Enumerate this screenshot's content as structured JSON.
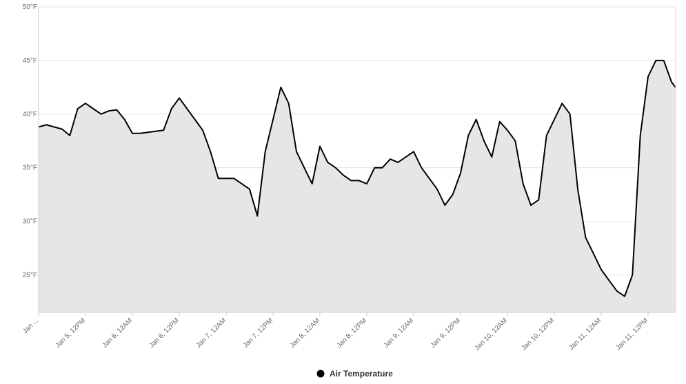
{
  "chart_data": {
    "type": "area",
    "x": [
      "Jan 5, 12AM",
      "Jan 5, 2AM",
      "Jan 5, 4AM",
      "Jan 5, 6AM",
      "Jan 5, 8AM",
      "Jan 5, 10AM",
      "Jan 5, 12PM",
      "Jan 5, 2PM",
      "Jan 5, 4PM",
      "Jan 5, 6PM",
      "Jan 5, 8PM",
      "Jan 5, 10PM",
      "Jan 6, 12AM",
      "Jan 6, 2AM",
      "Jan 6, 4AM",
      "Jan 6, 6AM",
      "Jan 6, 8AM",
      "Jan 6, 10AM",
      "Jan 6, 12PM",
      "Jan 6, 2PM",
      "Jan 6, 4PM",
      "Jan 6, 6PM",
      "Jan 6, 8PM",
      "Jan 6, 10PM",
      "Jan 7, 12AM",
      "Jan 7, 2AM",
      "Jan 7, 4AM",
      "Jan 7, 6AM",
      "Jan 7, 8AM",
      "Jan 7, 10AM",
      "Jan 7, 12PM",
      "Jan 7, 2PM",
      "Jan 7, 4PM",
      "Jan 7, 6PM",
      "Jan 7, 8PM",
      "Jan 7, 10PM",
      "Jan 8, 12AM",
      "Jan 8, 2AM",
      "Jan 8, 4AM",
      "Jan 8, 6AM",
      "Jan 8, 8AM",
      "Jan 8, 10AM",
      "Jan 8, 12PM",
      "Jan 8, 2PM",
      "Jan 8, 4PM",
      "Jan 8, 6PM",
      "Jan 8, 8PM",
      "Jan 8, 10PM",
      "Jan 9, 12AM",
      "Jan 9, 2AM",
      "Jan 9, 4AM",
      "Jan 9, 6AM",
      "Jan 9, 8AM",
      "Jan 9, 10AM",
      "Jan 9, 12PM",
      "Jan 9, 2PM",
      "Jan 9, 4PM",
      "Jan 9, 6PM",
      "Jan 9, 8PM",
      "Jan 9, 10PM",
      "Jan 10, 12AM",
      "Jan 10, 2AM",
      "Jan 10, 4AM",
      "Jan 10, 6AM",
      "Jan 10, 8AM",
      "Jan 10, 10AM",
      "Jan 10, 12PM",
      "Jan 10, 2PM",
      "Jan 10, 4PM",
      "Jan 10, 6PM",
      "Jan 10, 8PM",
      "Jan 10, 10PM",
      "Jan 11, 12AM",
      "Jan 11, 2AM",
      "Jan 11, 4AM",
      "Jan 11, 6AM",
      "Jan 11, 8AM",
      "Jan 11, 10AM",
      "Jan 11, 12PM",
      "Jan 11, 2PM",
      "Jan 11, 4PM",
      "Jan 11, 6PM",
      "Jan 11, 7PM"
    ],
    "series": [
      {
        "name": "Air Temperature",
        "color": "#000000",
        "fill": "#e6e6e6",
        "values": [
          38.8,
          39.0,
          38.8,
          38.6,
          38.0,
          40.5,
          41.0,
          40.5,
          40.0,
          40.3,
          40.4,
          39.5,
          38.2,
          38.2,
          38.3,
          38.4,
          38.5,
          40.5,
          41.5,
          40.5,
          39.5,
          38.5,
          36.5,
          34.0,
          34.0,
          34.0,
          33.5,
          33.0,
          30.5,
          36.5,
          39.5,
          42.5,
          41.0,
          36.5,
          35.0,
          33.5,
          37.0,
          35.5,
          35.0,
          34.3,
          33.8,
          33.8,
          33.5,
          35.0,
          35.0,
          35.8,
          35.5,
          36.0,
          36.5,
          35.0,
          34.0,
          33.0,
          31.5,
          32.5,
          34.5,
          38.0,
          39.5,
          37.5,
          36.0,
          39.3,
          38.5,
          37.5,
          33.5,
          31.5,
          32.0,
          38.0,
          39.5,
          41.0,
          40.0,
          33.0,
          28.5,
          27.0,
          25.5,
          24.5,
          23.5,
          23.0,
          25.0,
          38.0,
          43.5,
          45.0,
          45.0,
          43.0,
          42.5
        ]
      }
    ],
    "ylim": [
      21.5,
      50
    ],
    "yticks": [
      {
        "value": 25,
        "label": "25°F"
      },
      {
        "value": 30,
        "label": "30°F"
      },
      {
        "value": 35,
        "label": "35°F"
      },
      {
        "value": 40,
        "label": "40°F"
      },
      {
        "value": 45,
        "label": "45°F"
      },
      {
        "value": 50,
        "label": "50°F"
      }
    ],
    "xticks": [
      {
        "value": "Jan 5, 12AM",
        "label": "Jan ..."
      },
      "Jan 5, 12PM",
      "Jan 6, 12AM",
      "Jan 6, 12PM",
      "Jan 7, 12AM",
      "Jan 7, 12PM",
      "Jan 8, 12AM",
      "Jan 8, 12PM",
      "Jan 9, 12AM",
      "Jan 9, 12PM",
      "Jan 10, 12AM",
      "Jan 10, 12PM",
      "Jan 11, 12AM",
      "Jan 11, 12PM"
    ],
    "grid": true
  }
}
